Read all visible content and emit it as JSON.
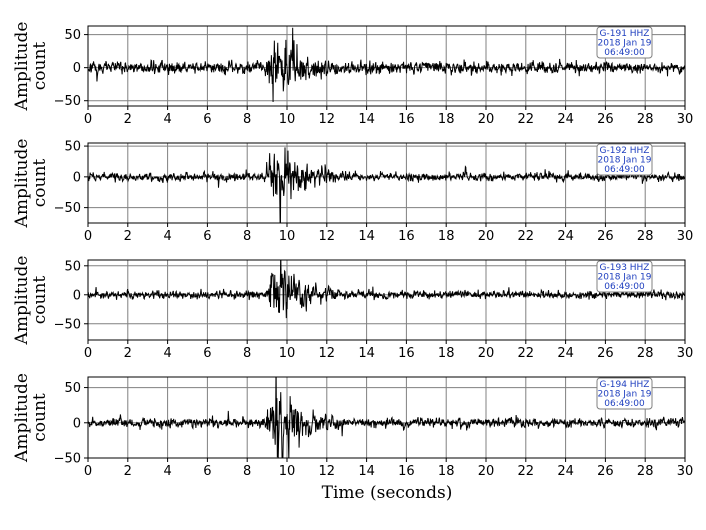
{
  "chart_data": [
    {
      "type": "line",
      "station_label": "G-191  HHZ",
      "date_label": "2018 Jan 19",
      "time_label": "06:49:00",
      "ylabel_line1": "Amplitude",
      "ylabel_line2": "count",
      "xlim": [
        0,
        30
      ],
      "ylim": [
        -58,
        63
      ],
      "yticks": [
        -50,
        0,
        50
      ],
      "xticks": [
        0,
        2,
        4,
        6,
        8,
        10,
        12,
        14,
        16,
        18,
        20,
        22,
        24,
        26,
        28,
        30
      ],
      "grid": true,
      "signal": {
        "background_amplitude": 9,
        "event_start": 8.9,
        "event_peak": 9.4,
        "event_end": 12.5,
        "event_amplitude": 55,
        "seed": 191
      }
    },
    {
      "type": "line",
      "station_label": "G-192  HHZ",
      "date_label": "2018 Jan 19",
      "time_label": "06:49:00",
      "ylabel_line1": "Amplitude",
      "ylabel_line2": "count",
      "xlim": [
        0,
        30
      ],
      "ylim": [
        -75,
        55
      ],
      "yticks": [
        -50,
        0,
        50
      ],
      "xticks": [
        0,
        2,
        4,
        6,
        8,
        10,
        12,
        14,
        16,
        18,
        20,
        22,
        24,
        26,
        28,
        30
      ],
      "grid": true,
      "signal": {
        "background_amplitude": 7,
        "event_start": 8.9,
        "event_peak": 9.4,
        "event_end": 12.8,
        "event_amplitude": 60,
        "seed": 192
      }
    },
    {
      "type": "line",
      "station_label": "G-193  HHZ",
      "date_label": "2018 Jan 19",
      "time_label": "06:49:00",
      "ylabel_line1": "Amplitude",
      "ylabel_line2": "count",
      "xlim": [
        0,
        30
      ],
      "ylim": [
        -78,
        60
      ],
      "yticks": [
        -50,
        0,
        50
      ],
      "xticks": [
        0,
        2,
        4,
        6,
        8,
        10,
        12,
        14,
        16,
        18,
        20,
        22,
        24,
        26,
        28,
        30
      ],
      "grid": true,
      "signal": {
        "background_amplitude": 7,
        "event_start": 8.9,
        "event_peak": 9.5,
        "event_end": 12.8,
        "event_amplitude": 58,
        "seed": 193
      }
    },
    {
      "type": "line",
      "station_label": "G-194  HHZ",
      "date_label": "2018 Jan 19",
      "time_label": "06:49:00",
      "ylabel_line1": "Amplitude",
      "ylabel_line2": "count",
      "xlim": [
        0,
        30
      ],
      "ylim": [
        -50,
        65
      ],
      "yticks": [
        -50,
        0,
        50
      ],
      "xticks": [
        0,
        2,
        4,
        6,
        8,
        10,
        12,
        14,
        16,
        18,
        20,
        22,
        24,
        26,
        28,
        30
      ],
      "grid": true,
      "signal": {
        "background_amplitude": 7,
        "event_start": 8.9,
        "event_peak": 9.5,
        "event_end": 12.8,
        "event_amplitude": 55,
        "seed": 194
      }
    }
  ],
  "xlabel": "Time (seconds)",
  "colors": {
    "trace": "#000000",
    "grid": "#808080",
    "annotation_text": "#1f3fbf",
    "annotation_border": "#808080"
  }
}
